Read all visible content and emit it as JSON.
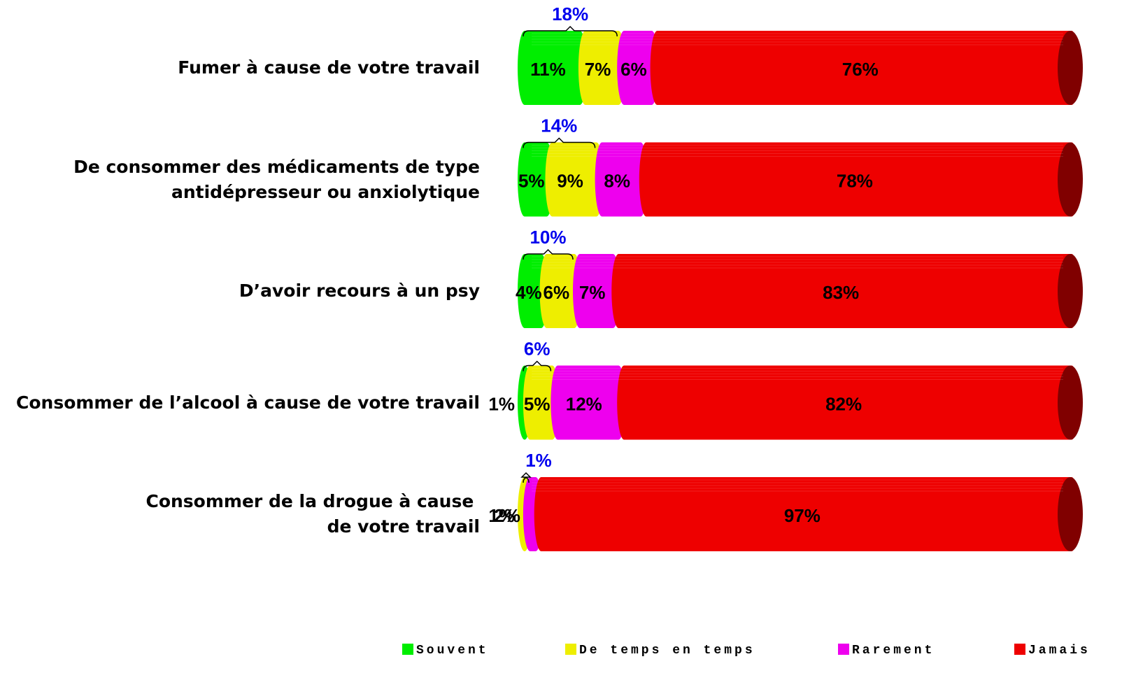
{
  "chart_data": {
    "type": "stacked-bar",
    "categories": [
      "Fumer à cause de votre travail",
      "De consommer des médicaments de type\nantidépresseur ou anxiolytique",
      "D’avoir recours à un psy",
      "Consommer de l’alcool à cause de votre travail",
      "Consommer de la drogue à cause \nde votre travail"
    ],
    "series": [
      {
        "name": "Souvent",
        "color": "#00ee00",
        "values": [
          11,
          5,
          4,
          1,
          null
        ],
        "value_labels": [
          "11%",
          "5%",
          "4%",
          "1%",
          null
        ]
      },
      {
        "name": "De temps en temps",
        "color": "#eeee00",
        "values": [
          7,
          9,
          6,
          5,
          1
        ],
        "value_labels": [
          "7%",
          "9%",
          "6%",
          "5%",
          "1%"
        ]
      },
      {
        "name": "Rarement",
        "color": "#ee00ee",
        "values": [
          6,
          8,
          7,
          12,
          2
        ],
        "value_labels": [
          "6%",
          "8%",
          "7%",
          "12%",
          "2%"
        ]
      },
      {
        "name": "Jamais",
        "color": "#ee0000",
        "values": [
          76,
          78,
          83,
          82,
          97
        ],
        "value_labels": [
          "76%",
          "78%",
          "83%",
          "82%",
          "97%"
        ]
      }
    ],
    "totals": {
      "color": "#0000ee",
      "values": [
        18,
        14,
        10,
        6,
        1
      ],
      "value_labels": [
        "18%",
        "14%",
        "10%",
        "6%",
        "1%"
      ]
    }
  }
}
